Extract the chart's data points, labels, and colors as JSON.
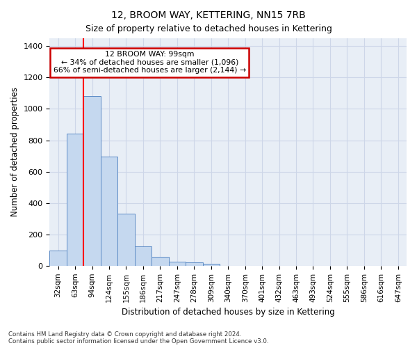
{
  "title": "12, BROOM WAY, KETTERING, NN15 7RB",
  "subtitle": "Size of property relative to detached houses in Kettering",
  "xlabel": "Distribution of detached houses by size in Kettering",
  "ylabel": "Number of detached properties",
  "bin_labels": [
    "32sqm",
    "63sqm",
    "94sqm",
    "124sqm",
    "155sqm",
    "186sqm",
    "217sqm",
    "247sqm",
    "278sqm",
    "309sqm",
    "340sqm",
    "370sqm",
    "401sqm",
    "432sqm",
    "463sqm",
    "493sqm",
    "524sqm",
    "555sqm",
    "586sqm",
    "616sqm",
    "647sqm"
  ],
  "bar_values": [
    95,
    840,
    1080,
    695,
    330,
    125,
    55,
    25,
    20,
    12,
    0,
    0,
    0,
    0,
    0,
    0,
    0,
    0,
    0,
    0,
    0
  ],
  "bar_color": "#c5d8ef",
  "bar_edge_color": "#5b8ac5",
  "red_line_x": 1.5,
  "annotation_line1": "12 BROOM WAY: 99sqm",
  "annotation_line2": "← 34% of detached houses are smaller (1,096)",
  "annotation_line3": "66% of semi-detached houses are larger (2,144) →",
  "annotation_box_color": "#ffffff",
  "annotation_box_edge_color": "#cc0000",
  "ylim": [
    0,
    1450
  ],
  "yticks": [
    0,
    200,
    400,
    600,
    800,
    1000,
    1200,
    1400
  ],
  "footer_line1": "Contains HM Land Registry data © Crown copyright and database right 2024.",
  "footer_line2": "Contains public sector information licensed under the Open Government Licence v3.0.",
  "grid_color": "#cdd6e8",
  "bg_color": "#e8eef6"
}
